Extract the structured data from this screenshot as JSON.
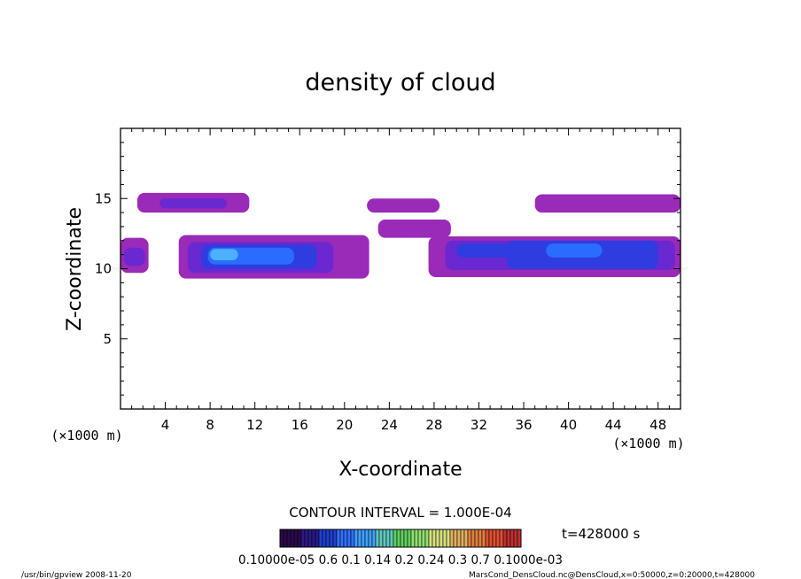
{
  "chart_data": {
    "type": "heatmap",
    "title": "density of cloud",
    "xlabel": "X-coordinate",
    "ylabel": "Z-coordinate",
    "x_unit": "(×1000 m)",
    "y_unit": "(×1000 m)",
    "xlim": [
      0,
      50
    ],
    "ylim": [
      0,
      20
    ],
    "x_ticks": [
      4,
      8,
      12,
      16,
      20,
      24,
      28,
      32,
      36,
      40,
      44,
      48
    ],
    "y_ticks": [
      5,
      10,
      15
    ],
    "contour_interval": "CONTOUR INTERVAL = 1.000E-04",
    "time_label": "t=428000 s",
    "colorbar_labels": "0.10000e-05 0.6 0.1 0.14 0.2 0.24 0.3 0.7 0.1000e-03",
    "colorbar_colors": [
      "#2a0a4a",
      "#2a1a8a",
      "#2040d0",
      "#3070ff",
      "#40a0ff",
      "#60c8c0",
      "#60d060",
      "#90e070",
      "#d8e080",
      "#e0b060",
      "#e08040",
      "#e05030",
      "#c03030"
    ],
    "level_colors": {
      "low": "#9a2ab8",
      "mid": "#6a28d0",
      "high": "#2e3ce0",
      "peak": "#2a6cff",
      "max": "#4ab0ff"
    },
    "regions": [
      {
        "level": "low",
        "x": [
          0,
          2.5
        ],
        "z": [
          9.7,
          12.2
        ]
      },
      {
        "level": "mid",
        "x": [
          0.3,
          2.2
        ],
        "z": [
          10.2,
          11.5
        ]
      },
      {
        "level": "low",
        "x": [
          1.5,
          11.5
        ],
        "z": [
          14.0,
          15.4
        ]
      },
      {
        "level": "mid",
        "x": [
          3.5,
          9.5
        ],
        "z": [
          14.3,
          15.0
        ]
      },
      {
        "level": "low",
        "x": [
          5.2,
          22.2
        ],
        "z": [
          9.3,
          12.4
        ]
      },
      {
        "level": "mid",
        "x": [
          6.0,
          19.0
        ],
        "z": [
          9.7,
          11.9
        ]
      },
      {
        "level": "high",
        "x": [
          7.2,
          17.5
        ],
        "z": [
          10.0,
          11.7
        ]
      },
      {
        "level": "peak",
        "x": [
          7.8,
          15.5
        ],
        "z": [
          10.3,
          11.5
        ]
      },
      {
        "level": "max",
        "x": [
          8.0,
          10.5
        ],
        "z": [
          10.6,
          11.4
        ]
      },
      {
        "level": "low",
        "x": [
          22.0,
          28.5
        ],
        "z": [
          14.0,
          15.0
        ]
      },
      {
        "level": "low",
        "x": [
          23.0,
          29.5
        ],
        "z": [
          12.2,
          13.5
        ]
      },
      {
        "level": "low",
        "x": [
          27.5,
          50.0
        ],
        "z": [
          9.4,
          12.3
        ]
      },
      {
        "level": "mid",
        "x": [
          29.0,
          49.5
        ],
        "z": [
          9.9,
          12.0
        ]
      },
      {
        "level": "high",
        "x": [
          30.0,
          35.0
        ],
        "z": [
          10.8,
          11.8
        ]
      },
      {
        "level": "high",
        "x": [
          34.5,
          48.0
        ],
        "z": [
          10.0,
          12.0
        ]
      },
      {
        "level": "peak",
        "x": [
          38.0,
          43.0
        ],
        "z": [
          10.8,
          11.8
        ]
      },
      {
        "level": "low",
        "x": [
          37.0,
          50.0
        ],
        "z": [
          14.0,
          15.3
        ]
      }
    ]
  },
  "footer": {
    "left": "/usr/bin/gpview   2008-11-20",
    "right": "MarsCond_DensCloud.nc@DensCloud,x=0:50000,z=0:20000,t=428000"
  }
}
